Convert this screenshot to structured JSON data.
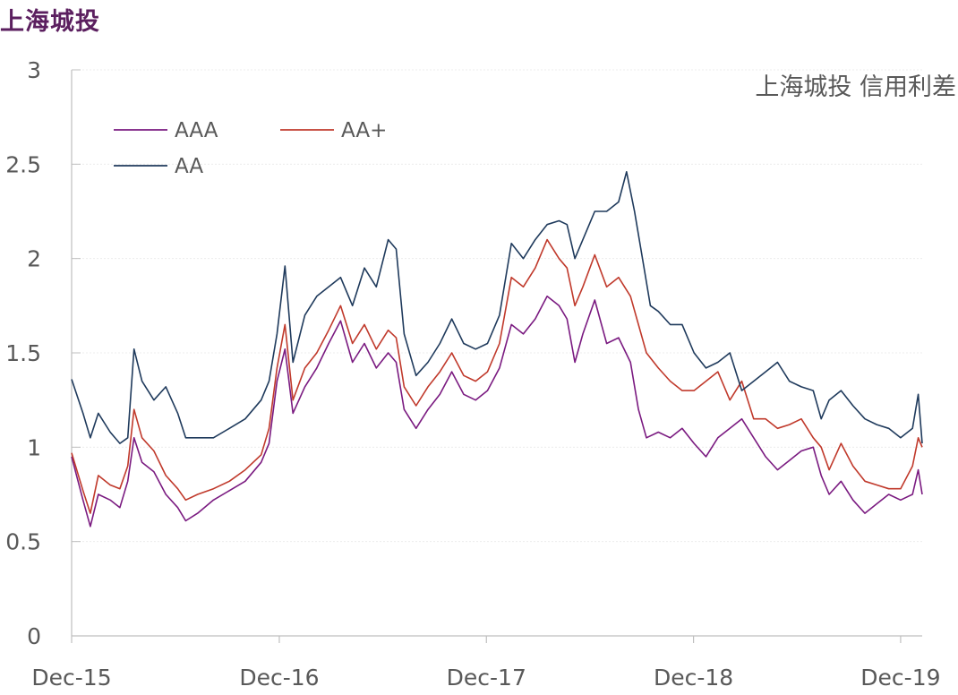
{
  "page_title": "上海城投",
  "chart_data": {
    "type": "line",
    "title": "上海城投 信用利差",
    "xlabel": "",
    "ylabel": "",
    "ylim": [
      0,
      3
    ],
    "yticks": [
      "0",
      "0.5",
      "1",
      "1.5",
      "2",
      "2.5",
      "3"
    ],
    "xlim": [
      "2015-12-01",
      "2020-01-08"
    ],
    "xticks": [
      {
        "date": "2015-12-01",
        "label": "Dec-15"
      },
      {
        "date": "2016-12-01",
        "label": "Dec-16"
      },
      {
        "date": "2017-12-01",
        "label": "Dec-17"
      },
      {
        "date": "2018-12-01",
        "label": "Dec-18"
      },
      {
        "date": "2019-12-01",
        "label": "Dec-19"
      }
    ],
    "grid": true,
    "legend_position": "top-left",
    "series": [
      {
        "name": "AAA",
        "color": "#7a1a80",
        "points": [
          [
            "2015-12-01",
            0.95
          ],
          [
            "2015-12-21",
            0.72
          ],
          [
            "2016-01-03",
            0.58
          ],
          [
            "2016-01-17",
            0.75
          ],
          [
            "2016-02-07",
            0.72
          ],
          [
            "2016-02-24",
            0.68
          ],
          [
            "2016-03-09",
            0.82
          ],
          [
            "2016-03-20",
            1.05
          ],
          [
            "2016-04-03",
            0.92
          ],
          [
            "2016-04-24",
            0.87
          ],
          [
            "2016-05-15",
            0.75
          ],
          [
            "2016-06-05",
            0.68
          ],
          [
            "2016-06-19",
            0.61
          ],
          [
            "2016-07-10",
            0.65
          ],
          [
            "2016-08-07",
            0.72
          ],
          [
            "2016-09-04",
            0.77
          ],
          [
            "2016-10-02",
            0.82
          ],
          [
            "2016-10-30",
            0.92
          ],
          [
            "2016-11-13",
            1.02
          ],
          [
            "2016-11-27",
            1.35
          ],
          [
            "2016-12-11",
            1.52
          ],
          [
            "2016-12-25",
            1.18
          ],
          [
            "2017-01-15",
            1.32
          ],
          [
            "2017-02-05",
            1.42
          ],
          [
            "2017-02-26",
            1.55
          ],
          [
            "2017-03-19",
            1.67
          ],
          [
            "2017-04-09",
            1.45
          ],
          [
            "2017-04-30",
            1.55
          ],
          [
            "2017-05-21",
            1.42
          ],
          [
            "2017-06-11",
            1.5
          ],
          [
            "2017-06-25",
            1.45
          ],
          [
            "2017-07-09",
            1.2
          ],
          [
            "2017-07-30",
            1.1
          ],
          [
            "2017-08-20",
            1.2
          ],
          [
            "2017-09-10",
            1.28
          ],
          [
            "2017-10-01",
            1.4
          ],
          [
            "2017-10-22",
            1.28
          ],
          [
            "2017-11-12",
            1.25
          ],
          [
            "2017-12-03",
            1.3
          ],
          [
            "2017-12-24",
            1.42
          ],
          [
            "2018-01-14",
            1.65
          ],
          [
            "2018-02-04",
            1.6
          ],
          [
            "2018-02-25",
            1.68
          ],
          [
            "2018-03-18",
            1.8
          ],
          [
            "2018-04-08",
            1.75
          ],
          [
            "2018-04-22",
            1.68
          ],
          [
            "2018-05-06",
            1.45
          ],
          [
            "2018-05-20",
            1.6
          ],
          [
            "2018-06-10",
            1.78
          ],
          [
            "2018-07-01",
            1.55
          ],
          [
            "2018-07-22",
            1.58
          ],
          [
            "2018-08-12",
            1.45
          ],
          [
            "2018-08-26",
            1.2
          ],
          [
            "2018-09-09",
            1.05
          ],
          [
            "2018-09-30",
            1.08
          ],
          [
            "2018-10-21",
            1.05
          ],
          [
            "2018-11-11",
            1.1
          ],
          [
            "2018-12-02",
            1.02
          ],
          [
            "2018-12-23",
            0.95
          ],
          [
            "2019-01-13",
            1.05
          ],
          [
            "2019-02-03",
            1.1
          ],
          [
            "2019-02-24",
            1.15
          ],
          [
            "2019-03-17",
            1.05
          ],
          [
            "2019-04-07",
            0.95
          ],
          [
            "2019-04-28",
            0.88
          ],
          [
            "2019-05-19",
            0.93
          ],
          [
            "2019-06-09",
            0.98
          ],
          [
            "2019-06-30",
            1.0
          ],
          [
            "2019-07-14",
            0.85
          ],
          [
            "2019-07-28",
            0.75
          ],
          [
            "2019-08-18",
            0.82
          ],
          [
            "2019-09-08",
            0.72
          ],
          [
            "2019-09-29",
            0.65
          ],
          [
            "2019-10-20",
            0.7
          ],
          [
            "2019-11-10",
            0.75
          ],
          [
            "2019-12-01",
            0.72
          ],
          [
            "2019-12-22",
            0.75
          ],
          [
            "2020-01-01",
            0.88
          ],
          [
            "2020-01-08",
            0.75
          ]
        ]
      },
      {
        "name": "AA+",
        "color": "#c0392b",
        "points": [
          [
            "2015-12-01",
            0.97
          ],
          [
            "2015-12-21",
            0.77
          ],
          [
            "2016-01-03",
            0.65
          ],
          [
            "2016-01-17",
            0.85
          ],
          [
            "2016-02-07",
            0.8
          ],
          [
            "2016-02-24",
            0.78
          ],
          [
            "2016-03-09",
            0.9
          ],
          [
            "2016-03-20",
            1.2
          ],
          [
            "2016-04-03",
            1.05
          ],
          [
            "2016-04-24",
            0.98
          ],
          [
            "2016-05-15",
            0.85
          ],
          [
            "2016-06-05",
            0.78
          ],
          [
            "2016-06-19",
            0.72
          ],
          [
            "2016-07-10",
            0.75
          ],
          [
            "2016-08-07",
            0.78
          ],
          [
            "2016-09-04",
            0.82
          ],
          [
            "2016-10-02",
            0.88
          ],
          [
            "2016-10-30",
            0.96
          ],
          [
            "2016-11-13",
            1.1
          ],
          [
            "2016-11-27",
            1.42
          ],
          [
            "2016-12-11",
            1.65
          ],
          [
            "2016-12-25",
            1.25
          ],
          [
            "2017-01-15",
            1.42
          ],
          [
            "2017-02-05",
            1.5
          ],
          [
            "2017-02-26",
            1.62
          ],
          [
            "2017-03-19",
            1.75
          ],
          [
            "2017-04-09",
            1.55
          ],
          [
            "2017-04-30",
            1.65
          ],
          [
            "2017-05-21",
            1.52
          ],
          [
            "2017-06-11",
            1.62
          ],
          [
            "2017-06-25",
            1.58
          ],
          [
            "2017-07-09",
            1.32
          ],
          [
            "2017-07-30",
            1.22
          ],
          [
            "2017-08-20",
            1.32
          ],
          [
            "2017-09-10",
            1.4
          ],
          [
            "2017-10-01",
            1.5
          ],
          [
            "2017-10-22",
            1.38
          ],
          [
            "2017-11-12",
            1.35
          ],
          [
            "2017-12-03",
            1.4
          ],
          [
            "2017-12-24",
            1.55
          ],
          [
            "2018-01-14",
            1.9
          ],
          [
            "2018-02-04",
            1.85
          ],
          [
            "2018-02-25",
            1.95
          ],
          [
            "2018-03-18",
            2.1
          ],
          [
            "2018-04-08",
            2.0
          ],
          [
            "2018-04-22",
            1.95
          ],
          [
            "2018-05-06",
            1.75
          ],
          [
            "2018-05-20",
            1.85
          ],
          [
            "2018-06-10",
            2.02
          ],
          [
            "2018-07-01",
            1.85
          ],
          [
            "2018-07-22",
            1.9
          ],
          [
            "2018-08-12",
            1.8
          ],
          [
            "2018-08-26",
            1.65
          ],
          [
            "2018-09-09",
            1.5
          ],
          [
            "2018-09-30",
            1.42
          ],
          [
            "2018-10-21",
            1.35
          ],
          [
            "2018-11-11",
            1.3
          ],
          [
            "2018-12-02",
            1.3
          ],
          [
            "2018-12-23",
            1.35
          ],
          [
            "2019-01-13",
            1.4
          ],
          [
            "2019-02-03",
            1.25
          ],
          [
            "2019-02-24",
            1.35
          ],
          [
            "2019-03-17",
            1.15
          ],
          [
            "2019-04-07",
            1.15
          ],
          [
            "2019-04-28",
            1.1
          ],
          [
            "2019-05-19",
            1.12
          ],
          [
            "2019-06-09",
            1.15
          ],
          [
            "2019-06-30",
            1.05
          ],
          [
            "2019-07-14",
            1.0
          ],
          [
            "2019-07-28",
            0.88
          ],
          [
            "2019-08-18",
            1.02
          ],
          [
            "2019-09-08",
            0.9
          ],
          [
            "2019-09-29",
            0.82
          ],
          [
            "2019-10-20",
            0.8
          ],
          [
            "2019-11-10",
            0.78
          ],
          [
            "2019-12-01",
            0.78
          ],
          [
            "2019-12-22",
            0.9
          ],
          [
            "2020-01-01",
            1.05
          ],
          [
            "2020-01-08",
            1.0
          ]
        ]
      },
      {
        "name": "AA",
        "color": "#1f3a5c",
        "points": [
          [
            "2015-12-01",
            1.36
          ],
          [
            "2015-12-21",
            1.18
          ],
          [
            "2016-01-03",
            1.05
          ],
          [
            "2016-01-17",
            1.18
          ],
          [
            "2016-02-07",
            1.08
          ],
          [
            "2016-02-24",
            1.02
          ],
          [
            "2016-03-09",
            1.05
          ],
          [
            "2016-03-20",
            1.52
          ],
          [
            "2016-04-03",
            1.35
          ],
          [
            "2016-04-24",
            1.25
          ],
          [
            "2016-05-15",
            1.32
          ],
          [
            "2016-06-05",
            1.18
          ],
          [
            "2016-06-19",
            1.05
          ],
          [
            "2016-07-10",
            1.05
          ],
          [
            "2016-08-07",
            1.05
          ],
          [
            "2016-09-04",
            1.1
          ],
          [
            "2016-10-02",
            1.15
          ],
          [
            "2016-10-30",
            1.25
          ],
          [
            "2016-11-13",
            1.35
          ],
          [
            "2016-11-27",
            1.6
          ],
          [
            "2016-12-11",
            1.96
          ],
          [
            "2016-12-25",
            1.45
          ],
          [
            "2017-01-15",
            1.7
          ],
          [
            "2017-02-05",
            1.8
          ],
          [
            "2017-02-26",
            1.85
          ],
          [
            "2017-03-19",
            1.9
          ],
          [
            "2017-04-09",
            1.75
          ],
          [
            "2017-04-30",
            1.95
          ],
          [
            "2017-05-21",
            1.85
          ],
          [
            "2017-06-11",
            2.1
          ],
          [
            "2017-06-25",
            2.05
          ],
          [
            "2017-07-09",
            1.6
          ],
          [
            "2017-07-30",
            1.38
          ],
          [
            "2017-08-20",
            1.45
          ],
          [
            "2017-09-10",
            1.55
          ],
          [
            "2017-10-01",
            1.68
          ],
          [
            "2017-10-22",
            1.55
          ],
          [
            "2017-11-12",
            1.52
          ],
          [
            "2017-12-03",
            1.55
          ],
          [
            "2017-12-24",
            1.7
          ],
          [
            "2018-01-14",
            2.08
          ],
          [
            "2018-02-04",
            2.0
          ],
          [
            "2018-02-25",
            2.1
          ],
          [
            "2018-03-18",
            2.18
          ],
          [
            "2018-04-08",
            2.2
          ],
          [
            "2018-04-22",
            2.18
          ],
          [
            "2018-05-06",
            2.0
          ],
          [
            "2018-05-20",
            2.1
          ],
          [
            "2018-06-10",
            2.25
          ],
          [
            "2018-07-01",
            2.25
          ],
          [
            "2018-07-22",
            2.3
          ],
          [
            "2018-08-05",
            2.46
          ],
          [
            "2018-08-19",
            2.25
          ],
          [
            "2018-09-02",
            2.0
          ],
          [
            "2018-09-16",
            1.75
          ],
          [
            "2018-09-30",
            1.72
          ],
          [
            "2018-10-21",
            1.65
          ],
          [
            "2018-11-11",
            1.65
          ],
          [
            "2018-12-02",
            1.5
          ],
          [
            "2018-12-23",
            1.42
          ],
          [
            "2019-01-13",
            1.45
          ],
          [
            "2019-02-03",
            1.5
          ],
          [
            "2019-02-24",
            1.3
          ],
          [
            "2019-03-17",
            1.35
          ],
          [
            "2019-04-07",
            1.4
          ],
          [
            "2019-04-28",
            1.45
          ],
          [
            "2019-05-19",
            1.35
          ],
          [
            "2019-06-09",
            1.32
          ],
          [
            "2019-06-30",
            1.3
          ],
          [
            "2019-07-14",
            1.15
          ],
          [
            "2019-07-28",
            1.25
          ],
          [
            "2019-08-18",
            1.3
          ],
          [
            "2019-09-08",
            1.22
          ],
          [
            "2019-09-29",
            1.15
          ],
          [
            "2019-10-20",
            1.12
          ],
          [
            "2019-11-10",
            1.1
          ],
          [
            "2019-12-01",
            1.05
          ],
          [
            "2019-12-22",
            1.1
          ],
          [
            "2020-01-01",
            1.28
          ],
          [
            "2020-01-08",
            1.02
          ]
        ]
      }
    ]
  }
}
